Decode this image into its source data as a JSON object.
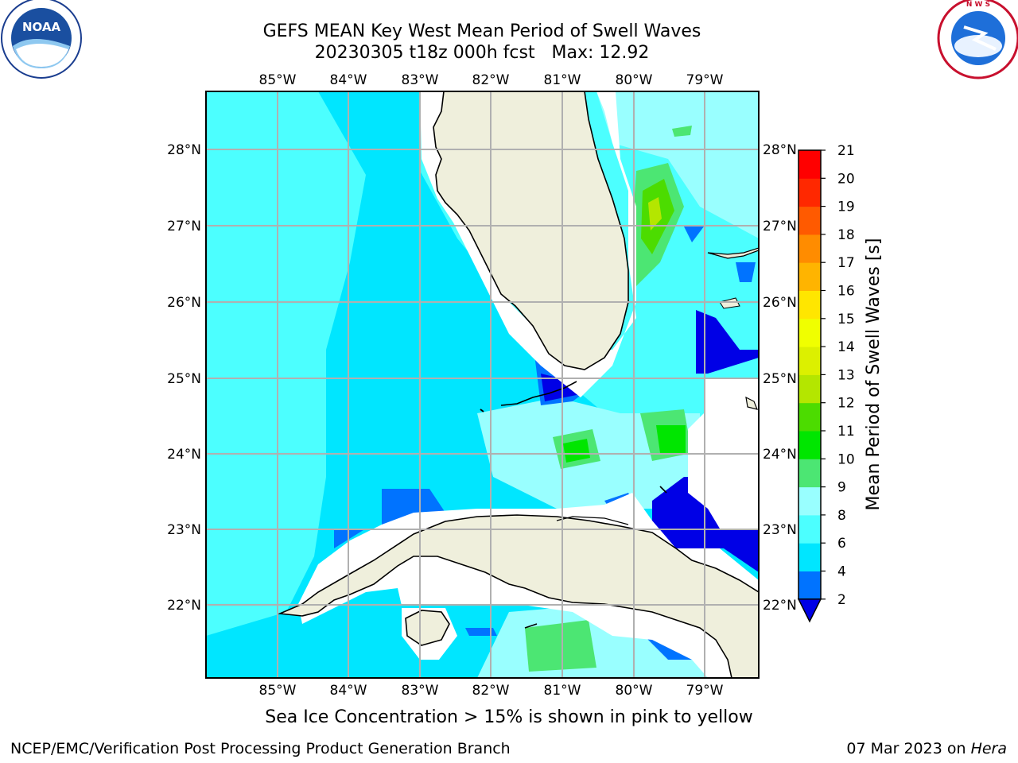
{
  "header": {
    "title_line1": "GEFS MEAN Key West Mean Period of Swell Waves",
    "title_line2": "20230305 t18z 000h fcst   Max: 12.92"
  },
  "logos": {
    "left": {
      "icon": "noaa-logo",
      "text": "NOAA",
      "ring_text": "NATIONAL OCEANIC AND ATMOSPHERIC ADMINISTRATION · U.S. DEPARTMENT OF COMMERCE"
    },
    "right": {
      "icon": "nws-logo",
      "ring_text": "NATIONAL WEATHER SERVICE"
    }
  },
  "map": {
    "lon_ticks": [
      "85°W",
      "84°W",
      "83°W",
      "82°W",
      "81°W",
      "80°W",
      "79°W"
    ],
    "lat_ticks": [
      "28°N",
      "27°N",
      "26°N",
      "25°N",
      "24°N",
      "23°N",
      "22°N"
    ],
    "colors": {
      "land": "#efefdc",
      "missing": "#ffffff",
      "grid": "#b0b0b0",
      "coast": "#000000"
    }
  },
  "colorbar": {
    "label": "Mean Period of Swell Waves [s]",
    "ticks": [
      "21",
      "20",
      "19",
      "18",
      "17",
      "16",
      "15",
      "14",
      "13",
      "12",
      "11",
      "10",
      "9",
      "8",
      "6",
      "4",
      "2"
    ],
    "bins": [
      {
        "from": 2,
        "to": 4,
        "color": "#0073ff"
      },
      {
        "from": 4,
        "to": 6,
        "color": "#00e6ff"
      },
      {
        "from": 6,
        "to": 8,
        "color": "#4cffff"
      },
      {
        "from": 8,
        "to": 9,
        "color": "#99ffff"
      },
      {
        "from": 9,
        "to": 10,
        "color": "#4ce673"
      },
      {
        "from": 10,
        "to": 11,
        "color": "#00e600"
      },
      {
        "from": 11,
        "to": 12,
        "color": "#4cdc00"
      },
      {
        "from": 12,
        "to": 13,
        "color": "#b4e600"
      },
      {
        "from": 13,
        "to": 14,
        "color": "#dcf000"
      },
      {
        "from": 14,
        "to": 15,
        "color": "#f0ff00"
      },
      {
        "from": 15,
        "to": 16,
        "color": "#ffe600"
      },
      {
        "from": 16,
        "to": 17,
        "color": "#ffb400"
      },
      {
        "from": 17,
        "to": 18,
        "color": "#ff8c00"
      },
      {
        "from": 18,
        "to": 19,
        "color": "#ff5a00"
      },
      {
        "from": 19,
        "to": 20,
        "color": "#ff2800"
      },
      {
        "from": 20,
        "to": 21,
        "color": "#ff0000"
      }
    ],
    "under_color": "#0000e6"
  },
  "subtitle": "Sea Ice Concentration > 15% is shown in pink to yellow",
  "footer": {
    "left": "NCEP/EMC/Verification Post Processing Product Generation Branch",
    "right_prefix": "07 Mar 2023 on ",
    "right_host": "Hera"
  }
}
